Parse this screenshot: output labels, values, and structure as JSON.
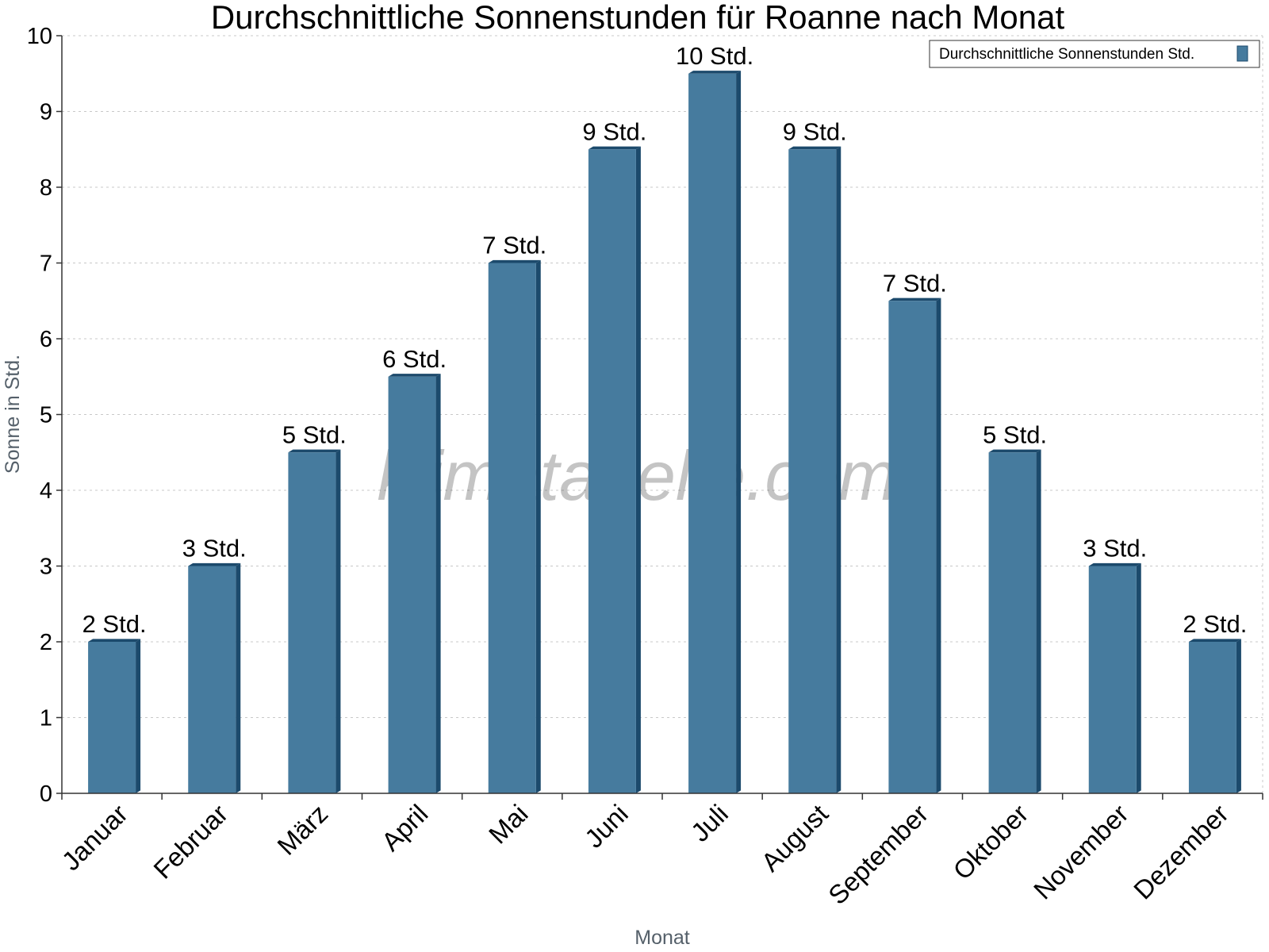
{
  "chart_data": {
    "type": "bar",
    "title": "Durchschnittliche Sonnenstunden für Roanne nach Monat",
    "xlabel": "Monat",
    "ylabel": "Sonne in Std.",
    "ylim": [
      0,
      10
    ],
    "yticks": [
      "0",
      "1",
      "2",
      "3",
      "4",
      "5",
      "6",
      "7",
      "8",
      "9",
      "10"
    ],
    "grid": true,
    "legend_position": "top-right",
    "categories": [
      "Januar",
      "Februar",
      "März",
      "April",
      "Mai",
      "Juni",
      "Juli",
      "August",
      "September",
      "Oktober",
      "November",
      "Dezember"
    ],
    "series": [
      {
        "name": "Durchschnittliche Sonnenstunden Std.",
        "values": [
          2,
          3,
          4.5,
          5.5,
          7,
          8.5,
          9.5,
          8.5,
          6.5,
          4.5,
          3,
          2
        ],
        "data_labels": [
          "2 Std.",
          "3 Std.",
          "5 Std.",
          "6 Std.",
          "7 Std.",
          "9 Std.",
          "10 Std.",
          "9 Std.",
          "7 Std.",
          "5 Std.",
          "3 Std.",
          "2 Std."
        ],
        "color": "#467b9e",
        "side_color": "#1c4a6c"
      }
    ],
    "watermark": "klimatabelle.com"
  }
}
